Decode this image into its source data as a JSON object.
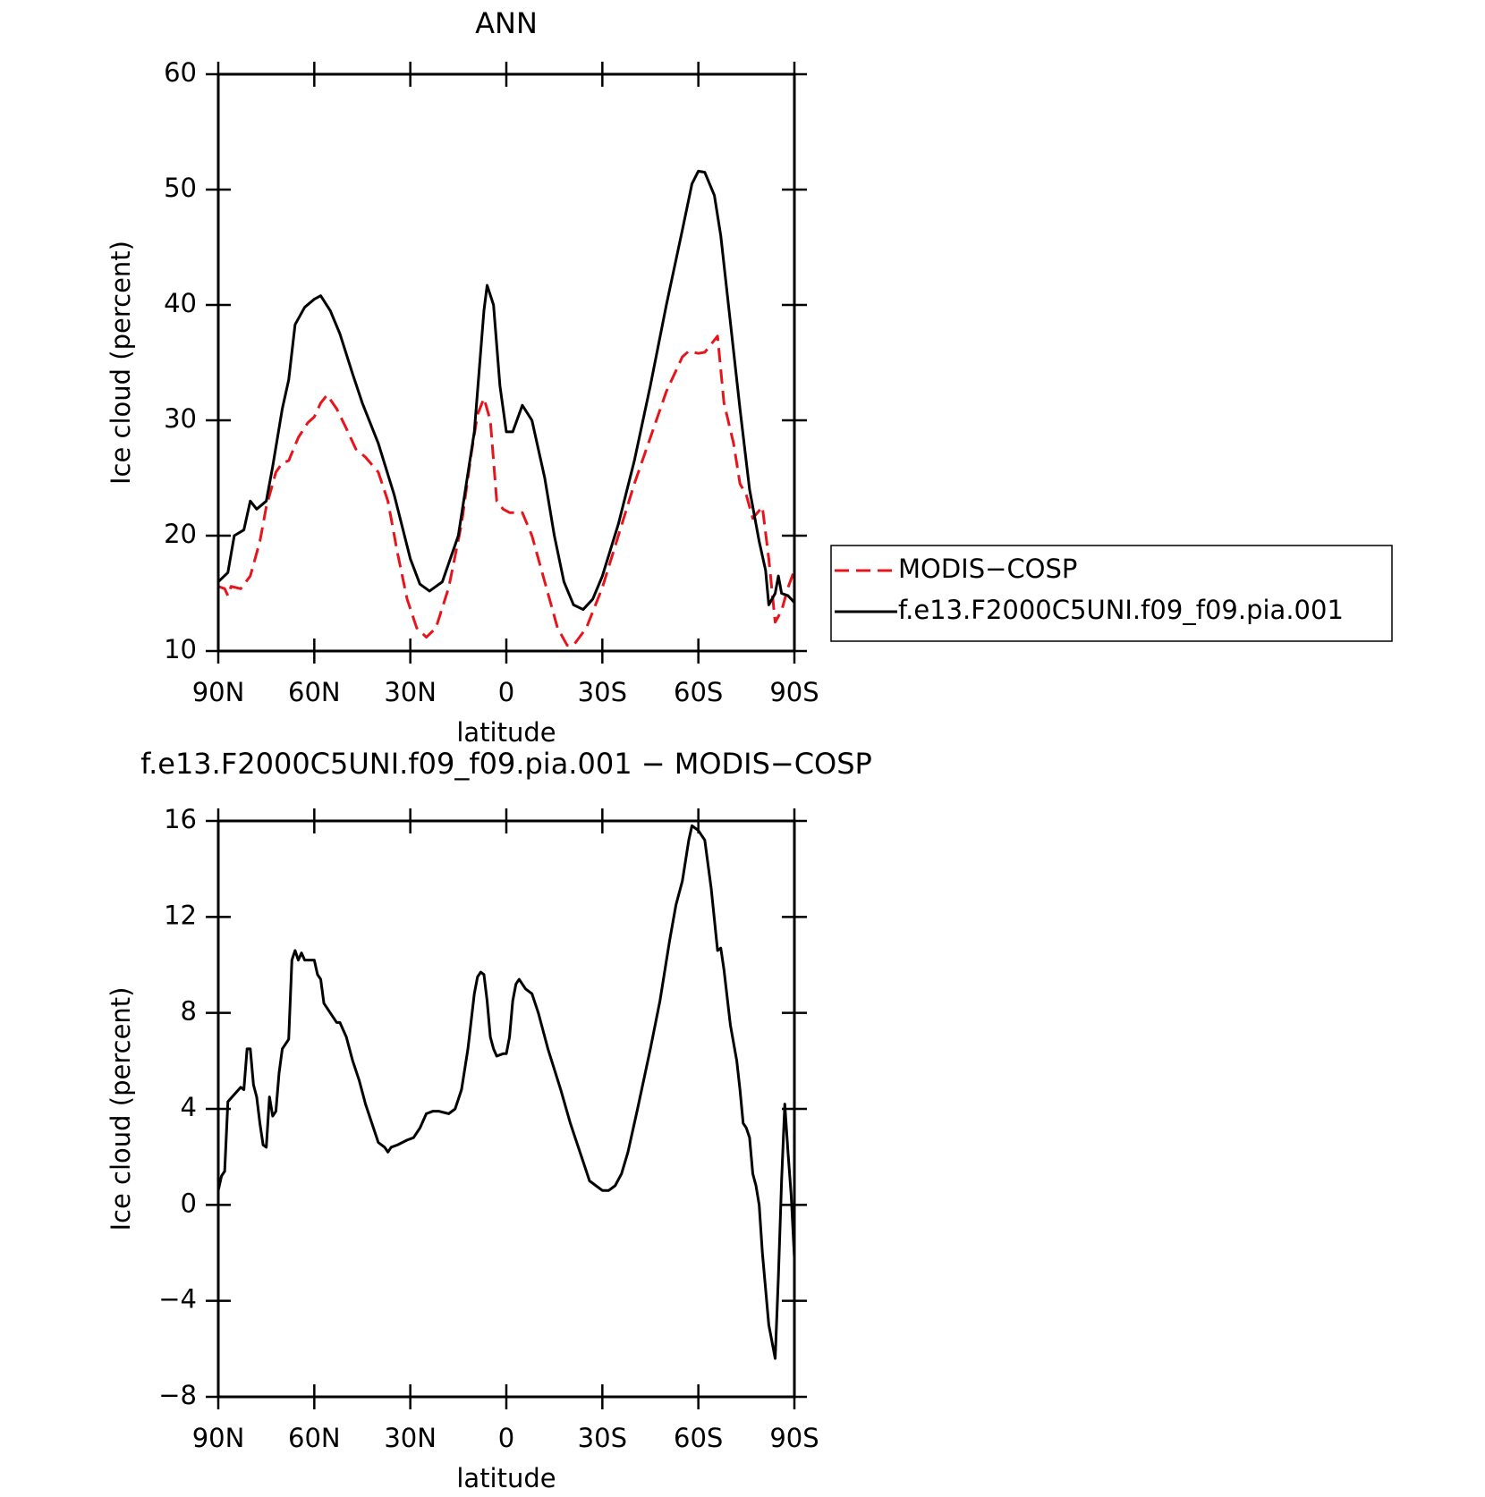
{
  "chart_data": [
    {
      "type": "line",
      "title": "ANN",
      "xlabel": "latitude",
      "ylabel": "Ice cloud (percent)",
      "xlim": [
        90,
        -90
      ],
      "ylim": [
        10,
        60
      ],
      "xticks": [
        {
          "value": 90,
          "label": "90N"
        },
        {
          "value": 60,
          "label": "60N"
        },
        {
          "value": 30,
          "label": "30N"
        },
        0,
        {
          "value": -30,
          "label": "30S"
        },
        {
          "value": -60,
          "label": "60S"
        },
        {
          "value": -90,
          "label": "90S"
        }
      ],
      "yticks": [
        10,
        20,
        30,
        40,
        50,
        60
      ],
      "legend": "right",
      "series": [
        {
          "name": "MODIS−COSP",
          "color": "#e8141b",
          "dash": "dashed",
          "x": [
            90,
            88,
            87,
            86,
            83,
            80,
            77,
            75,
            72,
            70,
            68,
            65,
            62,
            60,
            58,
            56,
            53,
            50,
            47,
            44,
            40,
            37,
            34,
            31,
            28,
            25,
            22,
            18,
            14,
            11,
            9,
            7,
            5,
            3,
            1,
            -1,
            -5,
            -8,
            -12,
            -16,
            -19,
            -21,
            -25,
            -30,
            -35,
            -40,
            -45,
            -50,
            -55,
            -57,
            -60,
            -62,
            -64,
            -66,
            -68,
            -71,
            -73,
            -75,
            -77,
            -80,
            -82,
            -84,
            -86,
            -88,
            -90
          ],
          "values": [
            15.6,
            15.4,
            14.8,
            15.6,
            15.4,
            16.5,
            19.5,
            22.5,
            25.5,
            26.3,
            26.5,
            28.5,
            29.8,
            30.3,
            31.5,
            32.2,
            31,
            29.3,
            27.5,
            26.8,
            25.5,
            23,
            18.5,
            14.5,
            12,
            11.2,
            12,
            15.5,
            21,
            27,
            30.5,
            31.9,
            30,
            23,
            22.3,
            22,
            22,
            20,
            16,
            12,
            10.5,
            10.5,
            12,
            15.5,
            20,
            24.5,
            28.5,
            32.5,
            35.5,
            36,
            35.8,
            35.9,
            36.6,
            37.3,
            31.5,
            28,
            24.5,
            23.5,
            21.5,
            22.5,
            18,
            12.5,
            13.5,
            15.5,
            17
          ]
        },
        {
          "name": "f.e13.F2000C5UNI.f09_f09.pia.001",
          "color": "#000000",
          "dash": "solid",
          "x": [
            90,
            87,
            85,
            82,
            80,
            78,
            75,
            73,
            70,
            68,
            66,
            63,
            60,
            58,
            55,
            52,
            48,
            45,
            40,
            35,
            30,
            27,
            24,
            20,
            15,
            10,
            7,
            6,
            4,
            2,
            0,
            -2,
            -5,
            -8,
            -12,
            -15,
            -18,
            -21,
            -24,
            -27,
            -30,
            -35,
            -40,
            -45,
            -50,
            -55,
            -58,
            -60,
            -62,
            -65,
            -67,
            -70,
            -73,
            -76,
            -79,
            -81,
            -82,
            -84,
            -85,
            -86,
            -88,
            -90
          ],
          "values": [
            16,
            16.8,
            20,
            20.5,
            23,
            22.3,
            23,
            26,
            31,
            33.5,
            38.3,
            39.8,
            40.5,
            40.8,
            39.5,
            37.5,
            34,
            31.5,
            28,
            23.5,
            18,
            15.8,
            15.2,
            16,
            20,
            29,
            39.5,
            41.7,
            40,
            33,
            29,
            29,
            31.3,
            30,
            25,
            20,
            16,
            14,
            13.6,
            14.5,
            16.5,
            21,
            26.5,
            33,
            40,
            46.5,
            50.5,
            51.6,
            51.5,
            49.5,
            46,
            38.5,
            31,
            24,
            19.5,
            17,
            14,
            15,
            16.5,
            15,
            14.8,
            14.2
          ]
        }
      ]
    },
    {
      "type": "line",
      "title": "f.e13.F2000C5UNI.f09_f09.pia.001 − MODIS−COSP",
      "xlabel": "latitude",
      "ylabel": "Ice cloud (percent)",
      "xlim": [
        90,
        -90
      ],
      "ylim": [
        -8,
        16
      ],
      "xticks": [
        {
          "value": 90,
          "label": "90N"
        },
        {
          "value": 60,
          "label": "60N"
        },
        {
          "value": 30,
          "label": "30N"
        },
        0,
        {
          "value": -30,
          "label": "30S"
        },
        {
          "value": -60,
          "label": "60S"
        },
        {
          "value": -90,
          "label": "90S"
        }
      ],
      "yticks": [
        {
          "value": -8,
          "label": "−8"
        },
        {
          "value": -4,
          "label": "−4"
        },
        0,
        4,
        8,
        12,
        16
      ],
      "series": [
        {
          "color": "#000000",
          "dash": "solid",
          "x": [
            90,
            89,
            88,
            87,
            85,
            83,
            82,
            81,
            80,
            79,
            78,
            77,
            76,
            75,
            74,
            73,
            72,
            71,
            70,
            68,
            67,
            66,
            65,
            64,
            63,
            61,
            60,
            59,
            58,
            57,
            55,
            53,
            52,
            50,
            48,
            46,
            44,
            42,
            40,
            38,
            37,
            36,
            34,
            31,
            29,
            27,
            25,
            23,
            21,
            18,
            16,
            14,
            12,
            10,
            9,
            8,
            7,
            6,
            5,
            4,
            3,
            1,
            0,
            -1,
            -2,
            -3,
            -4,
            -6,
            -8,
            -10,
            -13,
            -17,
            -20,
            -24,
            -26,
            -28,
            -30,
            -32,
            -34,
            -36,
            -38,
            -41,
            -45,
            -48,
            -51,
            -53,
            -55,
            -57,
            -58,
            -60,
            -62,
            -64,
            -66,
            -67,
            -68,
            -70,
            -72,
            -73,
            -74,
            -75,
            -76,
            -77,
            -78,
            -79,
            -80,
            -81,
            -82,
            -84,
            -85,
            -86,
            -87,
            -88,
            -89,
            -90
          ],
          "values": [
            0.6,
            1.2,
            1.4,
            4.3,
            4.6,
            4.9,
            4.8,
            6.5,
            6.5,
            5,
            4.5,
            3.4,
            2.5,
            2.4,
            4.5,
            3.7,
            3.9,
            5.5,
            6.5,
            6.9,
            10.2,
            10.6,
            10.2,
            10.5,
            10.2,
            10.2,
            10.2,
            9.6,
            9.4,
            8.4,
            8,
            7.6,
            7.6,
            7,
            6,
            5.2,
            4.2,
            3.4,
            2.6,
            2.4,
            2.2,
            2.4,
            2.5,
            2.7,
            2.8,
            3.2,
            3.8,
            3.9,
            3.9,
            3.8,
            4,
            4.8,
            6.5,
            8.8,
            9.5,
            9.7,
            9.6,
            8.5,
            7,
            6.5,
            6.2,
            6.3,
            6.3,
            7,
            8.5,
            9.2,
            9.4,
            9,
            8.8,
            8,
            6.5,
            4.8,
            3.4,
            1.8,
            1.0,
            0.8,
            0.6,
            0.6,
            0.8,
            1.3,
            2.2,
            4,
            6.5,
            8.5,
            11,
            12.5,
            13.5,
            15.2,
            15.8,
            15.6,
            15.2,
            13.2,
            10.6,
            10.7,
            9.8,
            7.5,
            6,
            4.8,
            3.4,
            3.2,
            2.8,
            1.3,
            0.8,
            0,
            -2,
            -3.5,
            -5,
            -6.4,
            -3,
            1,
            4.2,
            2.2,
            0.4,
            -2.2
          ]
        }
      ]
    }
  ]
}
